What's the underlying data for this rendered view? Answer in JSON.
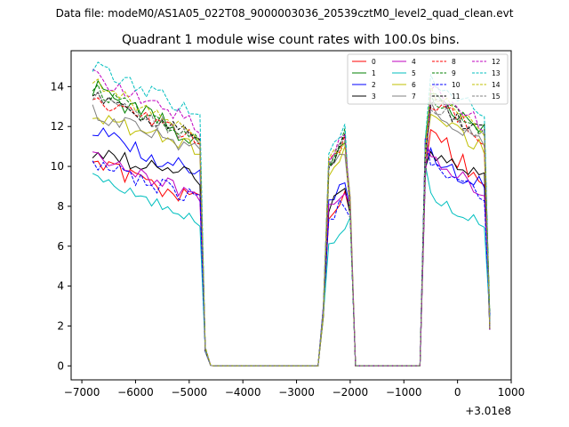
{
  "chart_data": {
    "type": "line",
    "suptitle": "Data file: modeM0/AS1A05_022T08_9000003036_20539cztM0_level2_quad_clean.evt",
    "title": "Quadrant 1 module wise count rates with 100.0s bins.",
    "xlabel": "",
    "ylabel": "",
    "x_offset_label": "+3.01e8",
    "xlim": [
      -7200,
      1000
    ],
    "ylim": [
      -0.7,
      15.8
    ],
    "xticks": [
      -7000,
      -6000,
      -5000,
      -4000,
      -3000,
      -2000,
      -1000,
      0,
      1000
    ],
    "xtick_labels": [
      "−7000",
      "−6000",
      "−5000",
      "−4000",
      "−3000",
      "−2000",
      "−1000",
      "0",
      "1000"
    ],
    "yticks": [
      0,
      2,
      4,
      6,
      8,
      10,
      12,
      14
    ],
    "ytick_labels": [
      "0",
      "2",
      "4",
      "6",
      "8",
      "10",
      "12",
      "14"
    ],
    "legend_position": "top-right",
    "legend_columns": 4,
    "x_segments": [
      {
        "start": -6800,
        "end": -4800,
        "step": 100
      },
      {
        "start": -4700,
        "end": -4600,
        "step": 100
      },
      {
        "start": -4500,
        "end": -2600,
        "step": 100
      },
      {
        "start": -2500,
        "end": -2000,
        "step": 100
      },
      {
        "start": -1900,
        "end": -700,
        "step": 100
      },
      {
        "start": -600,
        "end": 600,
        "step": 100
      }
    ],
    "series": [
      {
        "name": "0",
        "color": "#ff0000",
        "dash": "solid",
        "bases": [
          10.1,
          8.2,
          7.0,
          8.8,
          11.8
        ],
        "jitter": 0.5
      },
      {
        "name": "1",
        "color": "#008000",
        "dash": "solid",
        "bases": [
          14.0,
          11.2,
          10.0,
          11.6,
          13.5
        ],
        "jitter": 0.5
      },
      {
        "name": "2",
        "color": "#0000ff",
        "dash": "solid",
        "bases": [
          11.8,
          9.6,
          8.5,
          8.7,
          10.6
        ],
        "jitter": 0.5
      },
      {
        "name": "3",
        "color": "#000000",
        "dash": "solid",
        "bases": [
          10.7,
          9.4,
          7.6,
          9.2,
          10.7
        ],
        "jitter": 0.4
      },
      {
        "name": "4",
        "color": "#bf00bf",
        "dash": "solid",
        "bases": [
          10.6,
          8.4,
          7.8,
          8.5,
          10.6
        ],
        "jitter": 0.4
      },
      {
        "name": "5",
        "color": "#00bfbf",
        "dash": "solid",
        "bases": [
          9.4,
          7.2,
          6.1,
          7.0,
          8.4
        ],
        "jitter": 0.3
      },
      {
        "name": "6",
        "color": "#bfbf00",
        "dash": "solid",
        "bases": [
          12.5,
          10.9,
          9.7,
          10.8,
          12.4
        ],
        "jitter": 0.4
      },
      {
        "name": "7",
        "color": "#808080",
        "dash": "solid",
        "bases": [
          12.7,
          10.8,
          9.9,
          10.9,
          13.0
        ],
        "jitter": 0.4
      },
      {
        "name": "8",
        "color": "#ff0000",
        "dash": "dashed",
        "bases": [
          13.4,
          11.4,
          10.2,
          11.2,
          13.3
        ],
        "jitter": 0.4
      },
      {
        "name": "9",
        "color": "#008000",
        "dash": "dashed",
        "bases": [
          13.9,
          11.2,
          9.8,
          11.6,
          13.4
        ],
        "jitter": 0.4
      },
      {
        "name": "10",
        "color": "#0000ff",
        "dash": "dashed",
        "bases": [
          10.2,
          8.3,
          7.4,
          8.3,
          9.9
        ],
        "jitter": 0.4
      },
      {
        "name": "11",
        "color": "#000000",
        "dash": "dashed",
        "bases": [
          13.5,
          11.5,
          10.0,
          11.5,
          13.2
        ],
        "jitter": 0.4
      },
      {
        "name": "12",
        "color": "#bf00bf",
        "dash": "dashed",
        "bases": [
          14.5,
          12.0,
          10.5,
          11.7,
          14.0
        ],
        "jitter": 0.4
      },
      {
        "name": "13",
        "color": "#00bfbf",
        "dash": "dashed",
        "bases": [
          15.1,
          12.6,
          10.7,
          12.3,
          14.4
        ],
        "jitter": 0.4
      },
      {
        "name": "14",
        "color": "#bfbf00",
        "dash": "dashed",
        "bases": [
          14.2,
          11.6,
          10.3,
          11.3,
          13.8
        ],
        "jitter": 0.4
      },
      {
        "name": "15",
        "color": "#808080",
        "dash": "dashed",
        "bases": [
          13.6,
          11.3,
          10.1,
          11.3,
          13.1
        ],
        "jitter": 0.4
      }
    ]
  }
}
